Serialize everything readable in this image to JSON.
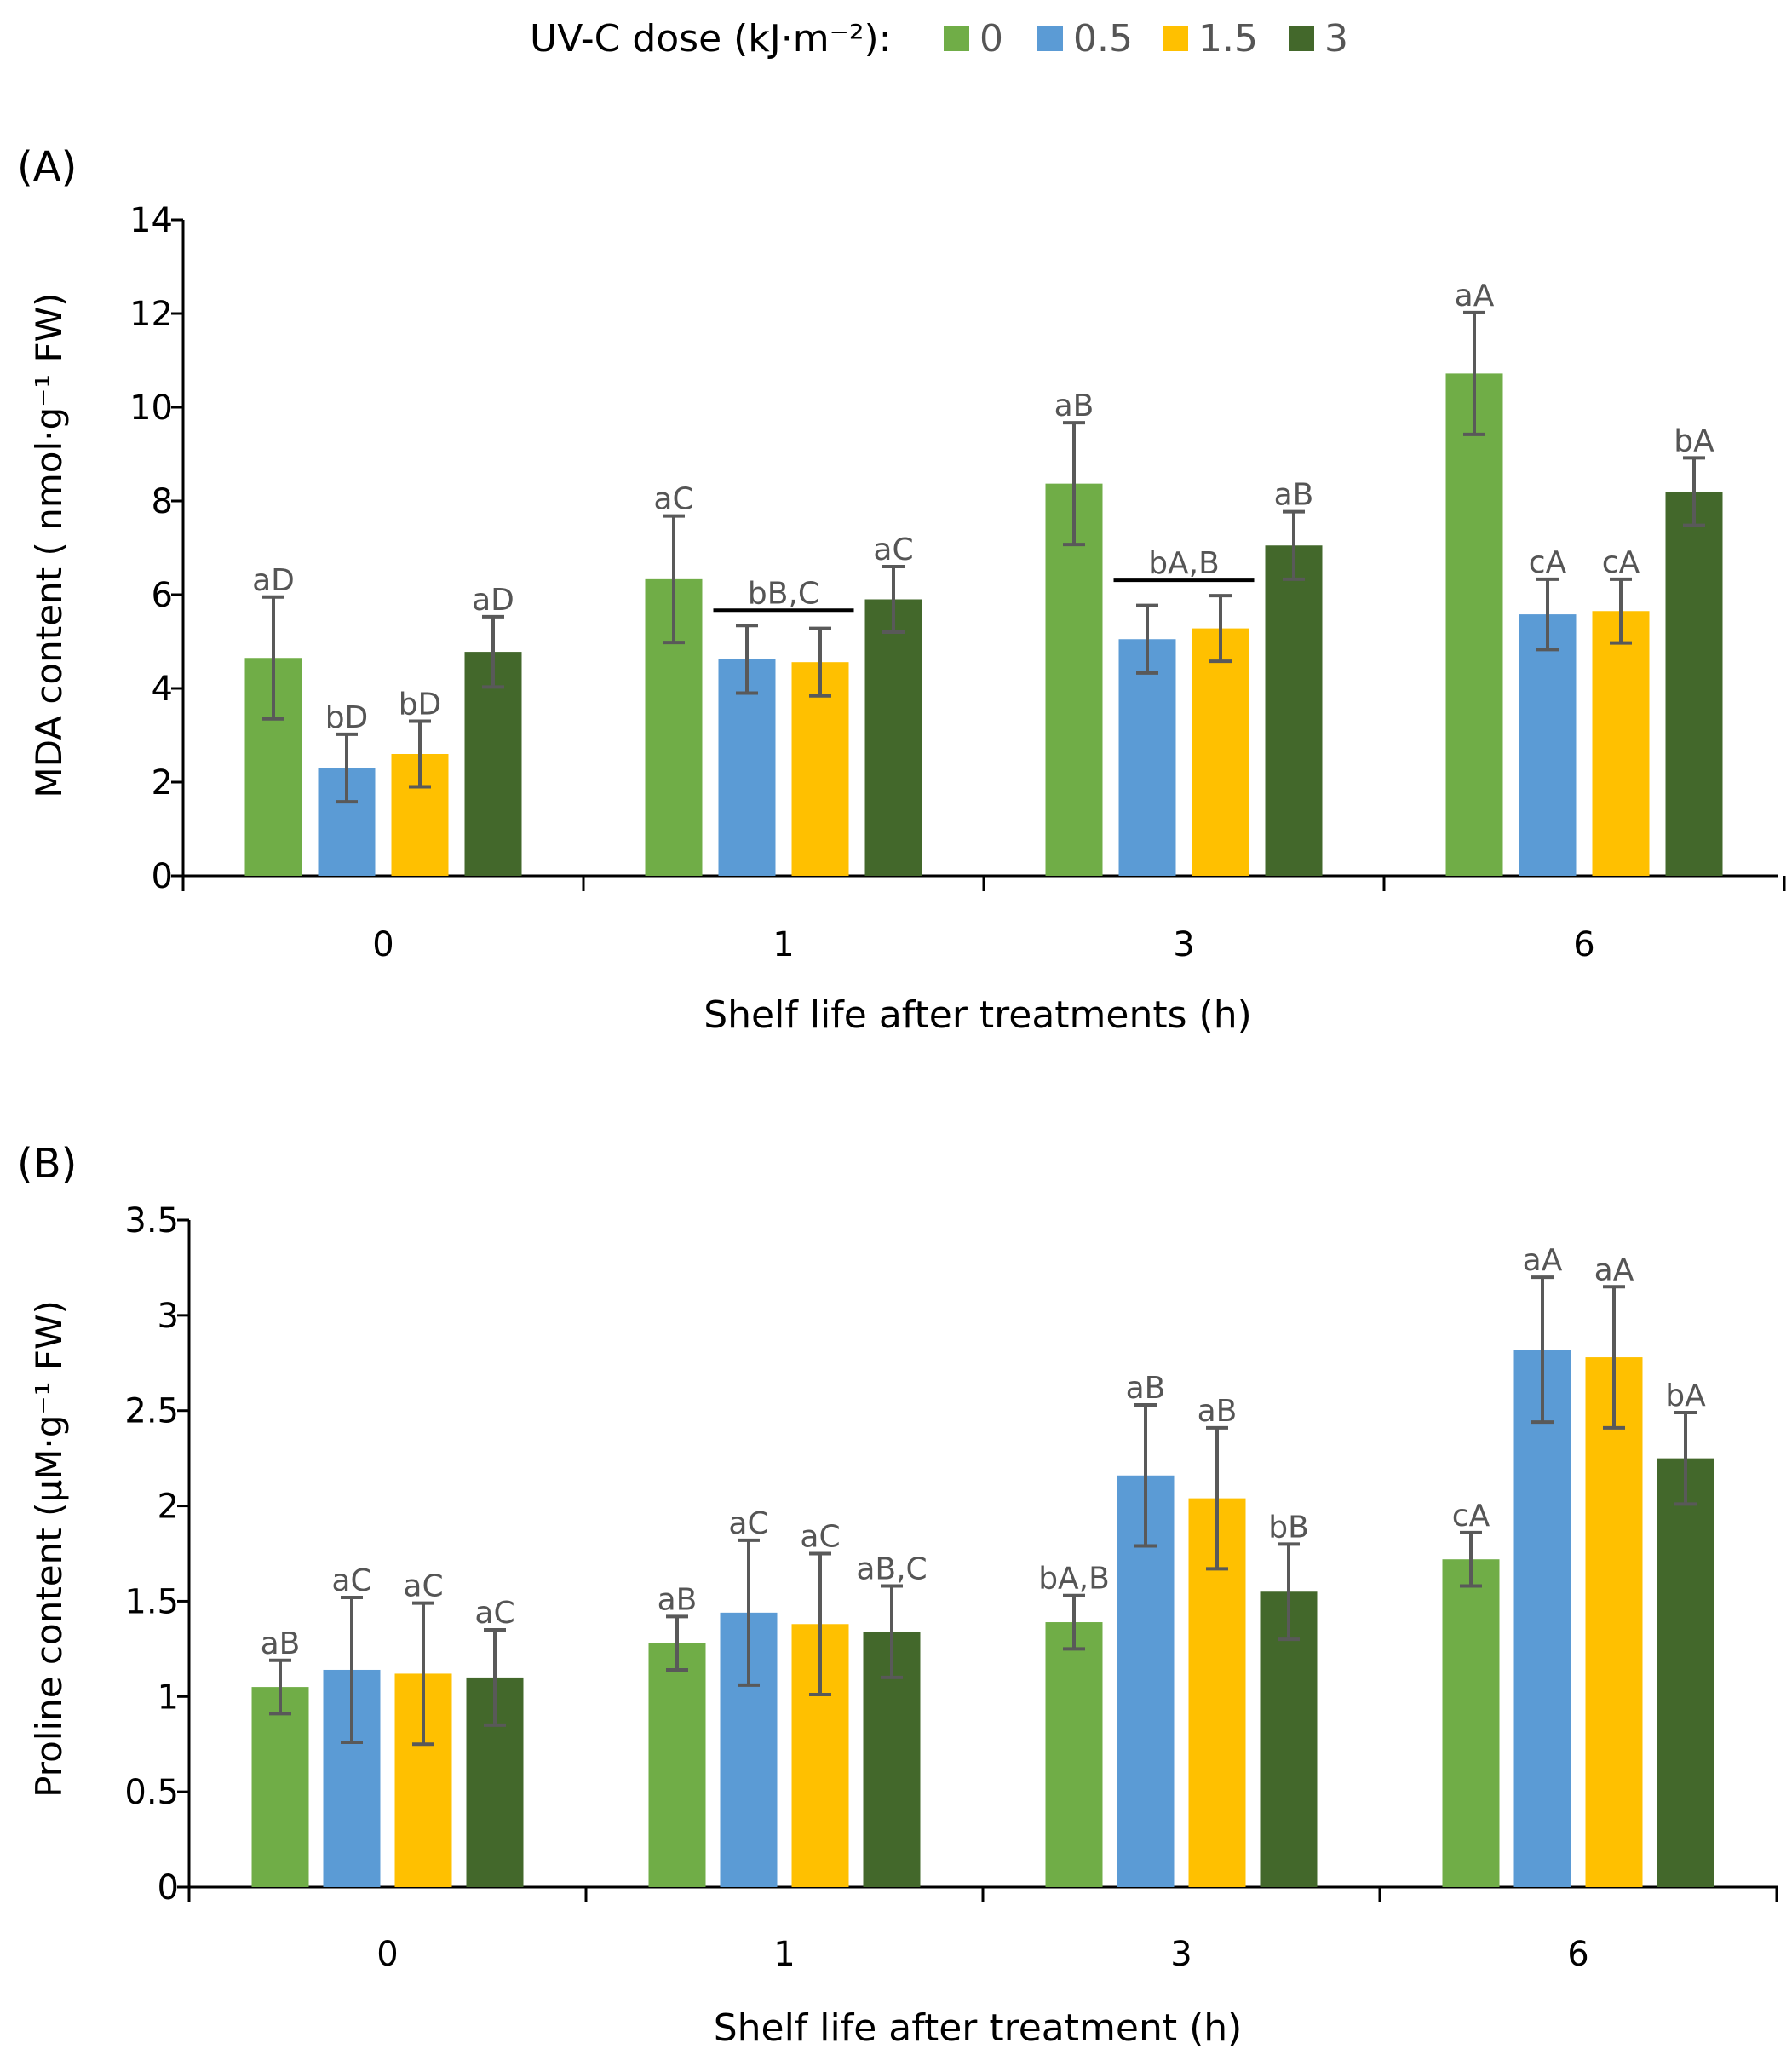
{
  "colors": {
    "0": "#70ad47",
    "0.5": "#5b9bd5",
    "1.5": "#ffc000",
    "3": "#43682b",
    "errorbar": "#595959",
    "axis": "#000000",
    "sig_text": "#555555"
  },
  "legend": {
    "title": "UV-C dose (kJ·m⁻²):",
    "items": [
      "0",
      "0.5",
      "1.5",
      "3"
    ]
  },
  "chart_data": [
    {
      "type": "bar",
      "panel": "(A)",
      "categories": [
        "0",
        "1",
        "3",
        "6"
      ],
      "xlabel": "Shelf life after treatments (h)",
      "ylabel": "MDA  content ( nmol·g⁻¹ FW)",
      "ylim": [
        0,
        14
      ],
      "yticks": [
        "0",
        "2",
        "4",
        "6",
        "8",
        "10",
        "12",
        "14"
      ],
      "legend_position": "top-center",
      "series": [
        {
          "name": "0",
          "values": [
            4.65,
            6.33,
            8.37,
            10.72
          ],
          "errors": [
            1.3,
            1.35,
            1.3,
            1.3
          ],
          "labels": [
            "aD",
            "aC",
            "aB",
            "aA"
          ]
        },
        {
          "name": "0.5",
          "values": [
            2.3,
            4.62,
            5.05,
            5.58
          ],
          "errors": [
            0.72,
            0.72,
            0.72,
            0.75
          ],
          "labels": [
            "bD",
            "",
            "",
            "cA"
          ]
        },
        {
          "name": "1.5",
          "values": [
            2.6,
            4.56,
            5.28,
            5.65
          ],
          "errors": [
            0.7,
            0.72,
            0.7,
            0.68
          ],
          "labels": [
            "bD",
            "",
            "",
            "cA"
          ]
        },
        {
          "name": "3",
          "values": [
            4.78,
            5.9,
            7.05,
            8.2
          ],
          "errors": [
            0.75,
            0.7,
            0.72,
            0.72
          ],
          "labels": [
            "aD",
            "aC",
            "aB",
            "bA"
          ]
        }
      ],
      "group_labels": [
        {
          "category_index": 1,
          "series": [
            1,
            2
          ],
          "label": "bB,C"
        },
        {
          "category_index": 2,
          "series": [
            1,
            2
          ],
          "label": "bA,B"
        }
      ]
    },
    {
      "type": "bar",
      "panel": "(B)",
      "categories": [
        "0",
        "1",
        "3",
        "6"
      ],
      "xlabel": "Shelf life after treatment (h)",
      "ylabel": "Proline content (μM·g⁻¹ FW)",
      "ylim": [
        0,
        3.5
      ],
      "yticks": [
        "0",
        "0.5",
        "1",
        "1.5",
        "2",
        "2.5",
        "3",
        "3.5"
      ],
      "series": [
        {
          "name": "0",
          "values": [
            1.05,
            1.28,
            1.39,
            1.72
          ],
          "errors": [
            0.14,
            0.14,
            0.14,
            0.14
          ],
          "labels": [
            "aB",
            "aB",
            "bA,B",
            "cA"
          ]
        },
        {
          "name": "0.5",
          "values": [
            1.14,
            1.44,
            2.16,
            2.82
          ],
          "errors": [
            0.38,
            0.38,
            0.37,
            0.38
          ],
          "labels": [
            "aC",
            "aC",
            "aB",
            "aA"
          ]
        },
        {
          "name": "1.5",
          "values": [
            1.12,
            1.38,
            2.04,
            2.78
          ],
          "errors": [
            0.37,
            0.37,
            0.37,
            0.37
          ],
          "labels": [
            "aC",
            "aC",
            "aB",
            "aA"
          ]
        },
        {
          "name": "3",
          "values": [
            1.1,
            1.34,
            1.55,
            2.25
          ],
          "errors": [
            0.25,
            0.24,
            0.25,
            0.24
          ],
          "labels": [
            "aC",
            "aB,C",
            "bB",
            "bA"
          ]
        }
      ]
    }
  ]
}
